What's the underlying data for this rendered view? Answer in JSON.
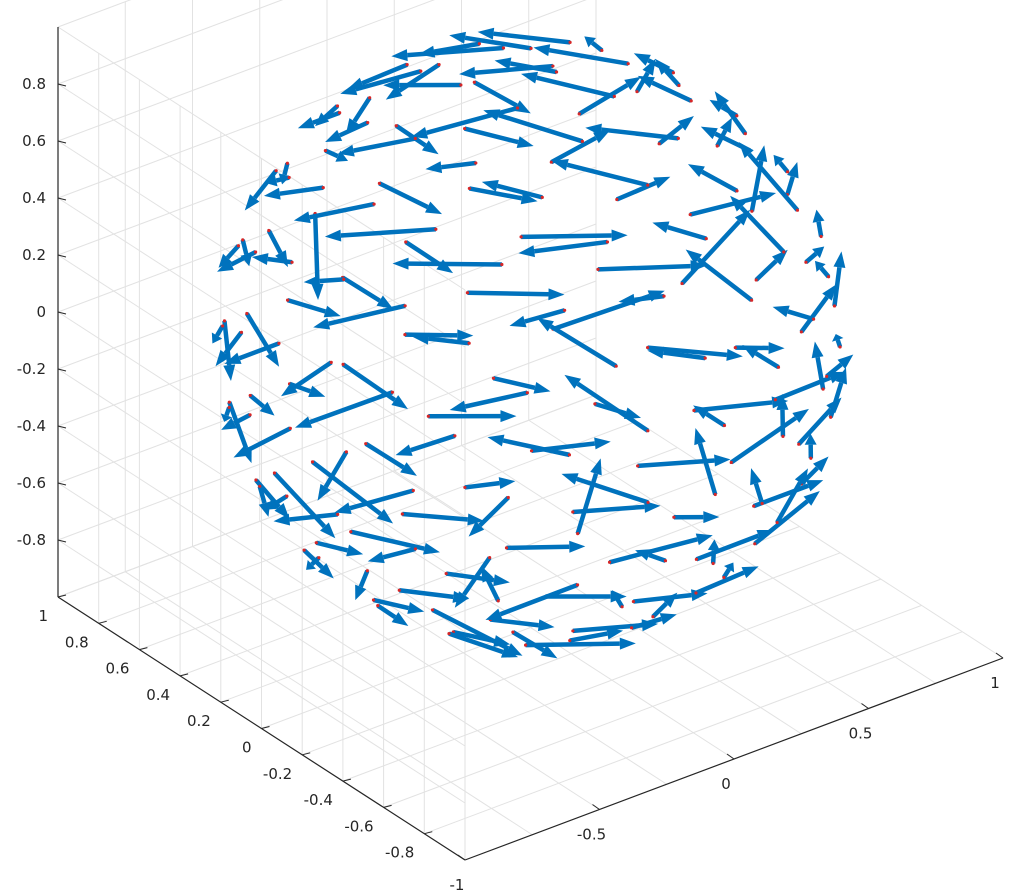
{
  "chart_data": {
    "type": "quiver3",
    "title": "",
    "xlabel": "",
    "ylabel": "",
    "zlabel": "",
    "xlim": [
      -1,
      1
    ],
    "ylim": [
      -1,
      1
    ],
    "zlim": [
      -1,
      1
    ],
    "grid": true,
    "colors": {
      "arrow": "#0072bd",
      "point": "#d62728",
      "grid": "#e2e2e2",
      "axis": "#262626"
    },
    "x_ticks": [
      "-1",
      "-0.5",
      "0",
      "0.5",
      "1"
    ],
    "x_tick_values": [
      -1,
      -0.5,
      0,
      0.5,
      1
    ],
    "y_ticks": [
      "1",
      "0.8",
      "0.6",
      "0.4",
      "0.2",
      "0",
      "-0.2",
      "-0.4",
      "-0.6",
      "-0.8"
    ],
    "y_tick_values": [
      1,
      0.8,
      0.6,
      0.4,
      0.2,
      0,
      -0.2,
      -0.4,
      -0.6,
      -0.8
    ],
    "z_ticks": [
      "0.8",
      "0.6",
      "0.4",
      "0.2",
      "0",
      "-0.2",
      "-0.4",
      "-0.6",
      "-0.8"
    ],
    "z_tick_values": [
      0.8,
      0.6,
      0.4,
      0.2,
      0,
      -0.2,
      -0.4,
      -0.6,
      -0.8
    ],
    "field": {
      "description_of_vectors": "unit sphere sample points with tangent vectors swirling about the vertical axis",
      "point_count": 180,
      "arrow_scale": 0.32
    }
  }
}
